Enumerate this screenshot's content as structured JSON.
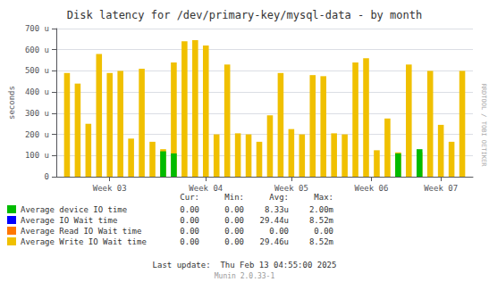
{
  "chart_data": {
    "type": "bar",
    "title": "Disk latency for /dev/primary-key/mysql-data - by month",
    "ylabel": "seconds",
    "x": [
      1,
      2,
      3,
      4,
      5,
      6,
      7,
      8,
      9,
      10,
      11,
      12,
      13,
      14,
      15,
      16,
      17,
      18,
      19,
      20,
      21,
      22,
      23,
      24,
      25,
      26,
      27,
      28,
      29,
      30,
      31,
      32,
      33,
      34,
      35,
      36,
      37,
      38
    ],
    "xlim": [
      0,
      39
    ],
    "xticks": [
      {
        "value": 5,
        "label": "Week 03"
      },
      {
        "value": 14,
        "label": "Week 04"
      },
      {
        "value": 22,
        "label": "Week 05"
      },
      {
        "value": 29.5,
        "label": "Week 06"
      },
      {
        "value": 36,
        "label": "Week 07"
      }
    ],
    "ylim": [
      0,
      700
    ],
    "yticks": [
      0,
      {
        "value": 100,
        "label": "100 u"
      },
      {
        "value": 200,
        "label": "200 u"
      },
      {
        "value": 300,
        "label": "300 u"
      },
      {
        "value": 400,
        "label": "400 u"
      },
      {
        "value": 500,
        "label": "500 u"
      },
      {
        "value": 600,
        "label": "600 u"
      },
      {
        "value": 700,
        "label": "700 u"
      }
    ],
    "grid": true,
    "stats_headers": [
      "Cur:",
      "Min:",
      "Avg:",
      "Max:"
    ],
    "series": [
      {
        "name": "Average device IO time",
        "color": "#00bb00",
        "values": [
          0,
          0,
          0,
          0,
          0,
          0,
          0,
          0,
          0,
          120,
          110,
          0,
          0,
          0,
          0,
          0,
          0,
          0,
          0,
          0,
          0,
          0,
          0,
          0,
          0,
          0,
          0,
          0,
          0,
          0,
          0,
          110,
          0,
          130,
          0,
          0,
          0,
          0
        ],
        "stats": [
          "0.00",
          "0.00",
          "8.33u",
          "2.00m"
        ]
      },
      {
        "name": "Average IO Wait time",
        "color": "#0000ff",
        "values": [
          null,
          null,
          null,
          null,
          null,
          null,
          null,
          null,
          null,
          null,
          null,
          null,
          null,
          null,
          null,
          null,
          null,
          null,
          null,
          null,
          null,
          null,
          null,
          null,
          null,
          null,
          null,
          null,
          null,
          null,
          null,
          null,
          null,
          null,
          null,
          null,
          null,
          null
        ],
        "stats": [
          "0.00",
          "0.00",
          "29.44u",
          "8.52m"
        ]
      },
      {
        "name": "Average Read IO Wait time",
        "color": "#ff7700",
        "values": [
          null,
          null,
          null,
          null,
          null,
          null,
          null,
          null,
          null,
          null,
          null,
          null,
          null,
          null,
          null,
          null,
          null,
          null,
          null,
          null,
          null,
          null,
          null,
          null,
          null,
          null,
          null,
          null,
          null,
          null,
          null,
          null,
          null,
          null,
          null,
          null,
          null,
          null
        ],
        "stats": [
          "0.00",
          "0.00",
          "0.00",
          "0.00"
        ]
      },
      {
        "name": "Average Write IO Wait time",
        "color": "#f0c000",
        "values": [
          490,
          440,
          250,
          580,
          490,
          500,
          180,
          510,
          165,
          130,
          540,
          640,
          645,
          620,
          200,
          530,
          205,
          200,
          165,
          290,
          490,
          225,
          200,
          480,
          475,
          205,
          200,
          540,
          560,
          125,
          275,
          115,
          530,
          115,
          500,
          245,
          165,
          500
        ],
        "stats": [
          "0.00",
          "0.00",
          "29.46u",
          "8.52m"
        ]
      }
    ],
    "side_text": "RRDTOOL / TOBI OETIKER",
    "footer": [
      "Last update:  Thu Feb 13 04:55:00 2025",
      "Munin 2.0.33-1"
    ]
  }
}
